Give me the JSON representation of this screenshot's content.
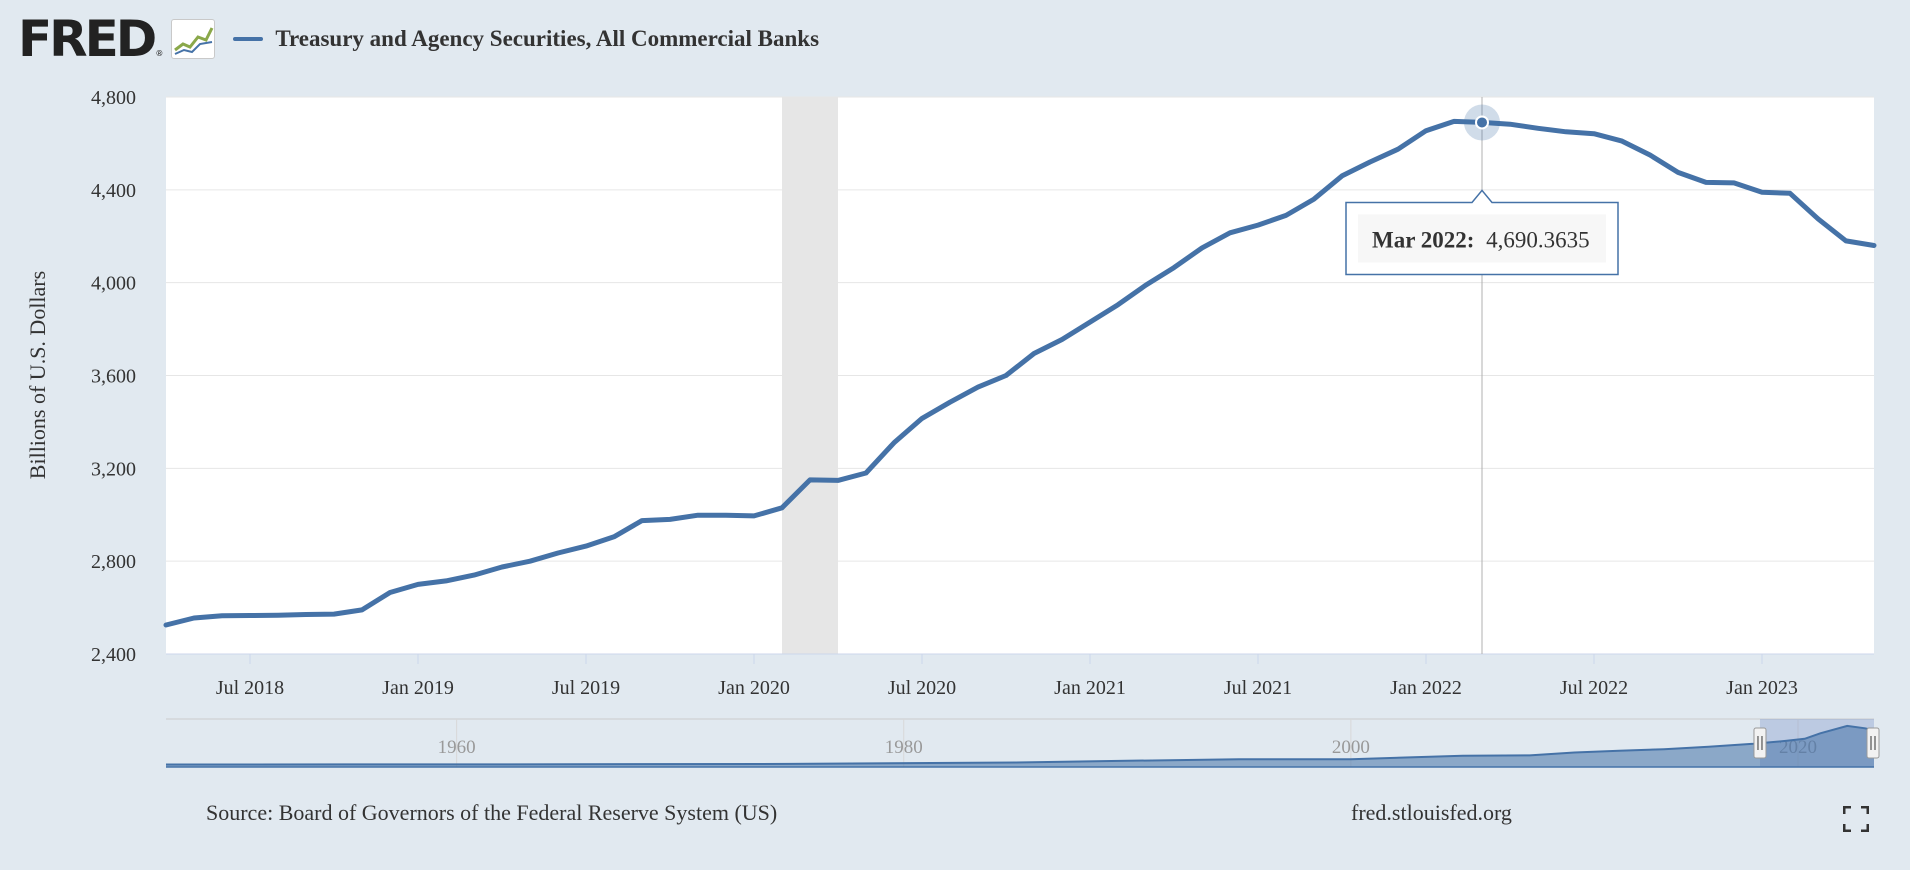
{
  "header": {
    "logo_text": "FRED",
    "logo_mark": "®",
    "series_title": "Treasury and Agency Securities, All Commercial Banks"
  },
  "chart_data": {
    "type": "line",
    "title": "Treasury and Agency Securities, All Commercial Banks",
    "ylabel": "Billions of U.S. Dollars",
    "xlabel": "",
    "ylim": [
      2400,
      4800
    ],
    "y_ticks": [
      2400,
      2800,
      3200,
      3600,
      4000,
      4400,
      4800
    ],
    "y_tick_labels": [
      "2,400",
      "2,800",
      "3,200",
      "3,600",
      "4,000",
      "4,400",
      "4,800"
    ],
    "x_range": [
      "2018-04",
      "2023-05"
    ],
    "x_tick_dates": [
      "2018-07",
      "2019-01",
      "2019-07",
      "2020-01",
      "2020-07",
      "2021-01",
      "2021-07",
      "2022-01",
      "2022-07",
      "2023-01"
    ],
    "x_tick_labels": [
      "Jul 2018",
      "Jan 2019",
      "Jul 2019",
      "Jan 2020",
      "Jul 2020",
      "Jan 2021",
      "Jul 2021",
      "Jan 2022",
      "Jul 2022",
      "Jan 2023"
    ],
    "grid": true,
    "recession": {
      "start": "2020-02",
      "end": "2020-04"
    },
    "series": [
      {
        "name": "Treasury and Agency Securities, All Commercial Banks",
        "color": "#4572a7",
        "points": [
          [
            "2018-04",
            2525
          ],
          [
            "2018-05",
            2555
          ],
          [
            "2018-06",
            2565
          ],
          [
            "2018-07",
            2566
          ],
          [
            "2018-08",
            2567
          ],
          [
            "2018-09",
            2570
          ],
          [
            "2018-10",
            2572
          ],
          [
            "2018-11",
            2590
          ],
          [
            "2018-12",
            2665
          ],
          [
            "2019-01",
            2700
          ],
          [
            "2019-02",
            2715
          ],
          [
            "2019-03",
            2740
          ],
          [
            "2019-04",
            2775
          ],
          [
            "2019-05",
            2800
          ],
          [
            "2019-06",
            2835
          ],
          [
            "2019-07",
            2865
          ],
          [
            "2019-08",
            2905
          ],
          [
            "2019-09",
            2975
          ],
          [
            "2019-10",
            2980
          ],
          [
            "2019-11",
            2998
          ],
          [
            "2019-12",
            2998
          ],
          [
            "2020-01",
            2995
          ],
          [
            "2020-02",
            3030
          ],
          [
            "2020-03",
            3150
          ],
          [
            "2020-04",
            3148
          ],
          [
            "2020-05",
            3180
          ],
          [
            "2020-06",
            3310
          ],
          [
            "2020-07",
            3415
          ],
          [
            "2020-08",
            3485
          ],
          [
            "2020-09",
            3550
          ],
          [
            "2020-10",
            3600
          ],
          [
            "2020-11",
            3695
          ],
          [
            "2020-12",
            3755
          ],
          [
            "2021-01",
            3830
          ],
          [
            "2021-02",
            3905
          ],
          [
            "2021-03",
            3990
          ],
          [
            "2021-04",
            4065
          ],
          [
            "2021-05",
            4150
          ],
          [
            "2021-06",
            4215
          ],
          [
            "2021-07",
            4248
          ],
          [
            "2021-08",
            4290
          ],
          [
            "2021-09",
            4360
          ],
          [
            "2021-10",
            4460
          ],
          [
            "2021-11",
            4520
          ],
          [
            "2021-12",
            4575
          ],
          [
            "2022-01",
            4655
          ],
          [
            "2022-02",
            4695
          ],
          [
            "2022-03",
            4690.3635
          ],
          [
            "2022-04",
            4683
          ],
          [
            "2022-05",
            4665
          ],
          [
            "2022-06",
            4650
          ],
          [
            "2022-07",
            4642
          ],
          [
            "2022-08",
            4610
          ],
          [
            "2022-09",
            4550
          ],
          [
            "2022-10",
            4475
          ],
          [
            "2022-11",
            4432
          ],
          [
            "2022-12",
            4430
          ],
          [
            "2023-01",
            4390
          ],
          [
            "2023-02",
            4385
          ],
          [
            "2023-03",
            4275
          ],
          [
            "2023-04",
            4180
          ],
          [
            "2023-05",
            4160
          ]
        ]
      }
    ],
    "tooltip": {
      "label": "Mar 2022:",
      "value": "4,690.3635",
      "date": "2022-03"
    },
    "navigator": {
      "labels": [
        "1960",
        "1980",
        "2000",
        "2020"
      ],
      "label_years": [
        1960,
        1980,
        2000,
        2020
      ],
      "range_years": [
        1947,
        2023.4
      ],
      "selected_years": [
        2018.3,
        2023.4
      ],
      "series": [
        [
          1947,
          60
        ],
        [
          1955,
          70
        ],
        [
          1965,
          85
        ],
        [
          1975,
          130
        ],
        [
          1985,
          300
        ],
        [
          1990,
          500
        ],
        [
          1995,
          700
        ],
        [
          2000,
          700
        ],
        [
          2005,
          1100
        ],
        [
          2008,
          1150
        ],
        [
          2010,
          1500
        ],
        [
          2012,
          1700
        ],
        [
          2014,
          1900
        ],
        [
          2016,
          2200
        ],
        [
          2018,
          2550
        ],
        [
          2019.5,
          2900
        ],
        [
          2020.3,
          3150
        ],
        [
          2021,
          3800
        ],
        [
          2022.2,
          4690
        ],
        [
          2023,
          4400
        ],
        [
          2023.4,
          4160
        ]
      ]
    }
  },
  "footer": {
    "source": "Source: Board of Governors of the Federal Reserve System (US)",
    "url": "fred.stlouisfed.org"
  },
  "icons": {
    "fullscreen": "fullscreen-icon",
    "chart": "chart-icon"
  }
}
